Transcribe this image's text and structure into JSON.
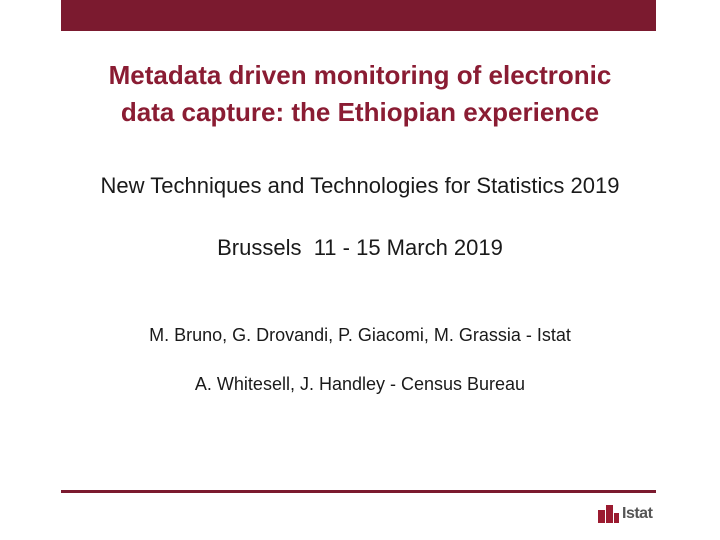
{
  "title": {
    "line1": "Metadata driven monitoring of electronic",
    "line2": "data capture: the Ethiopian experience"
  },
  "subtitle": "New Techniques and Technologies for Statistics 2019",
  "event": "Brussels  11 - 15 March 2019",
  "authors": {
    "line1": "M. Bruno, G. Drovandi, P. Giacomi, M. Grassia - Istat",
    "line2": "A. Whitesell, J. Handley - Census Bureau"
  },
  "logo": {
    "text": "Istat",
    "icon": "istat-bars-logo"
  },
  "colors": {
    "accent": "#7b1a2f",
    "title": "#8a1c33"
  }
}
